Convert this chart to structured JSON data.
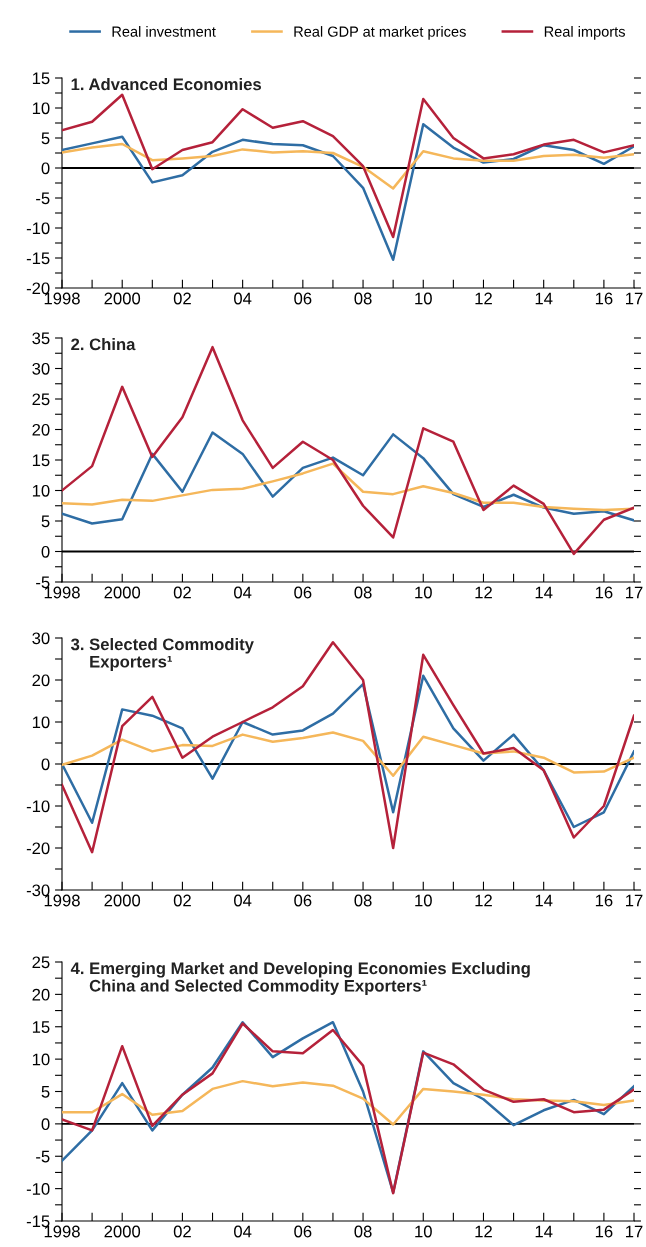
{
  "chart_data": [
    {
      "type": "line",
      "title": "1. Advanced Economies",
      "legend": "top",
      "x": [
        1998,
        1999,
        2000,
        2001,
        2002,
        2003,
        2004,
        2005,
        2006,
        2007,
        2008,
        2009,
        2010,
        2011,
        2012,
        2013,
        2014,
        2015,
        2016,
        2017
      ],
      "series": [
        {
          "name": "Real investment",
          "color": "#2e6da4",
          "values": [
            3.0,
            4.1,
            5.2,
            -2.4,
            -1.2,
            2.7,
            4.7,
            4.0,
            3.8,
            2.0,
            -3.3,
            -15.3,
            7.3,
            3.4,
            0.9,
            1.5,
            3.8,
            3.0,
            0.7,
            3.6
          ]
        },
        {
          "name": "Real GDP at market prices",
          "color": "#f5b75a",
          "values": [
            2.6,
            3.4,
            4.0,
            1.3,
            1.6,
            2.0,
            3.1,
            2.6,
            2.8,
            2.5,
            0.2,
            -3.4,
            2.8,
            1.6,
            1.2,
            1.2,
            2.0,
            2.2,
            1.7,
            2.3
          ]
        },
        {
          "name": "Real imports",
          "color": "#b5213a",
          "values": [
            6.3,
            7.7,
            12.2,
            -0.2,
            3.0,
            4.3,
            9.8,
            6.7,
            7.8,
            5.3,
            0.3,
            -11.5,
            11.5,
            5.0,
            1.6,
            2.3,
            3.9,
            4.7,
            2.6,
            3.8
          ]
        }
      ],
      "xlim": [
        1998,
        2017
      ],
      "xticks": [
        {
          "value": 1998,
          "label": "1998"
        },
        {
          "value": 1999,
          "label": null
        },
        {
          "value": 2000,
          "label": "2000"
        },
        {
          "value": 2001,
          "label": null
        },
        {
          "value": 2002,
          "label": "02"
        },
        {
          "value": 2003,
          "label": null
        },
        {
          "value": 2004,
          "label": "04"
        },
        {
          "value": 2005,
          "label": null
        },
        {
          "value": 2006,
          "label": "06"
        },
        {
          "value": 2007,
          "label": null
        },
        {
          "value": 2008,
          "label": "08"
        },
        {
          "value": 2009,
          "label": null
        },
        {
          "value": 2010,
          "label": "10"
        },
        {
          "value": 2011,
          "label": null
        },
        {
          "value": 2012,
          "label": "12"
        },
        {
          "value": 2013,
          "label": null
        },
        {
          "value": 2014,
          "label": "14"
        },
        {
          "value": 2015,
          "label": null
        },
        {
          "value": 2016,
          "label": "16"
        },
        {
          "value": 2017,
          "label": "17"
        }
      ],
      "ylim": [
        -20,
        15
      ],
      "yticks": [
        -20,
        {
          "value": -17.5,
          "label": null
        },
        -15,
        {
          "value": -12.5,
          "label": null
        },
        -10,
        {
          "value": -7.5,
          "label": null
        },
        -5,
        {
          "value": -2.5,
          "label": null
        },
        0,
        {
          "value": 2.5,
          "label": null
        },
        5,
        {
          "value": 7.5,
          "label": null
        },
        10,
        {
          "value": 12.5,
          "label": null
        },
        15
      ],
      "ref_lines": [
        {
          "axis": "y",
          "value": 0,
          "color": "#000000"
        }
      ]
    },
    {
      "type": "line",
      "title": "2. China",
      "x": [
        1998,
        1999,
        2000,
        2001,
        2002,
        2003,
        2004,
        2005,
        2006,
        2007,
        2008,
        2009,
        2010,
        2011,
        2012,
        2013,
        2014,
        2015,
        2016,
        2017
      ],
      "series": [
        {
          "color": "#2e6da4",
          "values": [
            6.2,
            4.6,
            5.3,
            16.0,
            9.8,
            19.5,
            16.0,
            9.0,
            13.7,
            15.4,
            12.5,
            19.2,
            15.3,
            9.4,
            7.3,
            9.3,
            7.2,
            6.2,
            6.6,
            5.1
          ]
        },
        {
          "color": "#f5b75a",
          "values": [
            7.9,
            7.7,
            8.5,
            8.3,
            9.2,
            10.1,
            10.3,
            11.5,
            12.8,
            14.4,
            9.8,
            9.4,
            10.7,
            9.6,
            8.0,
            8.0,
            7.3,
            7.0,
            6.8,
            7.0
          ]
        },
        {
          "color": "#b5213a",
          "values": [
            10.0,
            14.0,
            27.0,
            15.5,
            22.0,
            33.5,
            21.5,
            13.7,
            18.0,
            15.0,
            7.5,
            2.3,
            20.2,
            18.0,
            6.8,
            10.8,
            7.8,
            -0.4,
            5.2,
            7.2
          ]
        }
      ],
      "xlim": [
        1998,
        2017
      ],
      "xticks": [
        {
          "value": 1998,
          "label": "1998"
        },
        {
          "value": 1999,
          "label": null
        },
        {
          "value": 2000,
          "label": "2000"
        },
        {
          "value": 2001,
          "label": null
        },
        {
          "value": 2002,
          "label": "02"
        },
        {
          "value": 2003,
          "label": null
        },
        {
          "value": 2004,
          "label": "04"
        },
        {
          "value": 2005,
          "label": null
        },
        {
          "value": 2006,
          "label": "06"
        },
        {
          "value": 2007,
          "label": null
        },
        {
          "value": 2008,
          "label": "08"
        },
        {
          "value": 2009,
          "label": null
        },
        {
          "value": 2010,
          "label": "10"
        },
        {
          "value": 2011,
          "label": null
        },
        {
          "value": 2012,
          "label": "12"
        },
        {
          "value": 2013,
          "label": null
        },
        {
          "value": 2014,
          "label": "14"
        },
        {
          "value": 2015,
          "label": null
        },
        {
          "value": 2016,
          "label": "16"
        },
        {
          "value": 2017,
          "label": "17"
        }
      ],
      "ylim": [
        -5,
        35
      ],
      "yticks": [
        -5,
        {
          "value": -2.5,
          "label": null
        },
        0,
        {
          "value": 2.5,
          "label": null
        },
        5,
        {
          "value": 7.5,
          "label": null
        },
        10,
        {
          "value": 12.5,
          "label": null
        },
        15,
        {
          "value": 17.5,
          "label": null
        },
        20,
        {
          "value": 22.5,
          "label": null
        },
        25,
        {
          "value": 27.5,
          "label": null
        },
        30,
        {
          "value": 32.5,
          "label": null
        },
        35
      ],
      "ref_lines": [
        {
          "axis": "y",
          "value": 0,
          "color": "#000000"
        }
      ]
    },
    {
      "type": "line",
      "title": "3. Selected Commodity\n    Exporters¹",
      "x": [
        1998,
        1999,
        2000,
        2001,
        2002,
        2003,
        2004,
        2005,
        2006,
        2007,
        2008,
        2009,
        2010,
        2011,
        2012,
        2013,
        2014,
        2015,
        2016,
        2017
      ],
      "series": [
        {
          "color": "#2e6da4",
          "values": [
            0.0,
            -14.0,
            13.0,
            11.5,
            8.5,
            -3.5,
            10.0,
            7.0,
            8.0,
            12.0,
            19.0,
            -11.5,
            21.0,
            8.5,
            0.8,
            7.0,
            -1.5,
            -15.0,
            -11.5,
            3.0
          ]
        },
        {
          "color": "#f5b75a",
          "values": [
            -0.2,
            2.0,
            5.8,
            3.0,
            4.5,
            4.3,
            7.0,
            5.3,
            6.2,
            7.5,
            5.5,
            -2.8,
            6.5,
            4.5,
            2.5,
            3.0,
            1.5,
            -2.0,
            -1.8,
            1.5
          ]
        },
        {
          "color": "#b5213a",
          "values": [
            -5.0,
            -21.0,
            9.0,
            16.0,
            1.5,
            6.5,
            10.0,
            13.5,
            18.5,
            29.0,
            20.0,
            -20.0,
            26.0,
            14.0,
            2.5,
            3.8,
            -1.5,
            -17.5,
            -10.0,
            11.5
          ]
        }
      ],
      "xlim": [
        1998,
        2017
      ],
      "xticks": [
        {
          "value": 1998,
          "label": "1998"
        },
        {
          "value": 1999,
          "label": null
        },
        {
          "value": 2000,
          "label": "2000"
        },
        {
          "value": 2001,
          "label": null
        },
        {
          "value": 2002,
          "label": "02"
        },
        {
          "value": 2003,
          "label": null
        },
        {
          "value": 2004,
          "label": "04"
        },
        {
          "value": 2005,
          "label": null
        },
        {
          "value": 2006,
          "label": "06"
        },
        {
          "value": 2007,
          "label": null
        },
        {
          "value": 2008,
          "label": "08"
        },
        {
          "value": 2009,
          "label": null
        },
        {
          "value": 2010,
          "label": "10"
        },
        {
          "value": 2011,
          "label": null
        },
        {
          "value": 2012,
          "label": "12"
        },
        {
          "value": 2013,
          "label": null
        },
        {
          "value": 2014,
          "label": "14"
        },
        {
          "value": 2015,
          "label": null
        },
        {
          "value": 2016,
          "label": "16"
        },
        {
          "value": 2017,
          "label": "17"
        }
      ],
      "ylim": [
        -30,
        30
      ],
      "yticks": [
        -30,
        {
          "value": -25,
          "label": null
        },
        -20,
        {
          "value": -15,
          "label": null
        },
        -10,
        {
          "value": -5,
          "label": null
        },
        0,
        {
          "value": 5,
          "label": null
        },
        10,
        {
          "value": 15,
          "label": null
        },
        20,
        {
          "value": 25,
          "label": null
        },
        30
      ],
      "ref_lines": [
        {
          "axis": "y",
          "value": 0,
          "color": "#000000"
        }
      ]
    },
    {
      "type": "line",
      "title": "4. Emerging Market and Developing Economies Excluding\n    China and Selected Commodity Exporters¹",
      "x": [
        1998,
        1999,
        2000,
        2001,
        2002,
        2003,
        2004,
        2005,
        2006,
        2007,
        2008,
        2009,
        2010,
        2011,
        2012,
        2013,
        2014,
        2015,
        2016,
        2017
      ],
      "series": [
        {
          "color": "#2e6da4",
          "values": [
            -5.7,
            -1.0,
            6.3,
            -1.0,
            4.5,
            8.7,
            15.7,
            10.3,
            13.2,
            15.7,
            5.0,
            -10.6,
            11.2,
            6.3,
            3.8,
            -0.2,
            2.1,
            3.7,
            1.5,
            5.8
          ]
        },
        {
          "color": "#f5b75a",
          "values": [
            1.8,
            1.8,
            4.6,
            1.4,
            2.0,
            5.4,
            6.6,
            5.8,
            6.4,
            5.9,
            3.9,
            -0.1,
            5.4,
            5.0,
            4.5,
            3.8,
            3.6,
            3.5,
            2.9,
            3.6
          ]
        },
        {
          "color": "#b5213a",
          "values": [
            0.7,
            -1.0,
            12.0,
            -0.3,
            4.5,
            7.8,
            15.5,
            11.2,
            10.9,
            14.5,
            9.0,
            -10.7,
            11.0,
            9.2,
            5.3,
            3.4,
            3.8,
            1.8,
            2.2,
            5.3
          ]
        }
      ],
      "xlim": [
        1998,
        2017
      ],
      "xticks": [
        {
          "value": 1998,
          "label": "1998"
        },
        {
          "value": 1999,
          "label": null
        },
        {
          "value": 2000,
          "label": "2000"
        },
        {
          "value": 2001,
          "label": null
        },
        {
          "value": 2002,
          "label": "02"
        },
        {
          "value": 2003,
          "label": null
        },
        {
          "value": 2004,
          "label": "04"
        },
        {
          "value": 2005,
          "label": null
        },
        {
          "value": 2006,
          "label": "06"
        },
        {
          "value": 2007,
          "label": null
        },
        {
          "value": 2008,
          "label": "08"
        },
        {
          "value": 2009,
          "label": null
        },
        {
          "value": 2010,
          "label": "10"
        },
        {
          "value": 2011,
          "label": null
        },
        {
          "value": 2012,
          "label": "12"
        },
        {
          "value": 2013,
          "label": null
        },
        {
          "value": 2014,
          "label": "14"
        },
        {
          "value": 2015,
          "label": null
        },
        {
          "value": 2016,
          "label": "16"
        },
        {
          "value": 2017,
          "label": "17"
        }
      ],
      "ylim": [
        -15,
        25
      ],
      "yticks": [
        -15,
        {
          "value": -12.5,
          "label": null
        },
        -10,
        {
          "value": -7.5,
          "label": null
        },
        -5,
        {
          "value": -2.5,
          "label": null
        },
        0,
        {
          "value": 2.5,
          "label": null
        },
        5,
        {
          "value": 7.5,
          "label": null
        },
        10,
        {
          "value": 12.5,
          "label": null
        },
        15,
        {
          "value": 17.5,
          "label": null
        },
        20,
        {
          "value": 22.5,
          "label": null
        },
        25
      ],
      "ref_lines": [
        {
          "axis": "y",
          "value": 0,
          "color": "#000000"
        }
      ]
    }
  ]
}
